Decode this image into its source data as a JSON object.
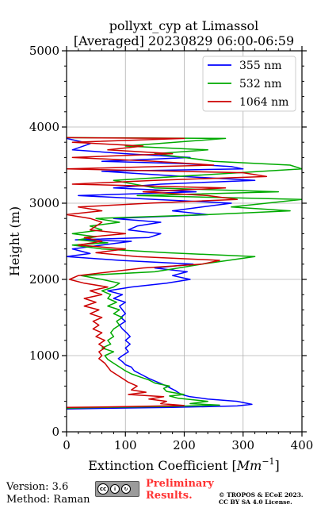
{
  "chart_data": {
    "type": "line",
    "title_line1": "pollyxt_cyp at Limassol",
    "title_line2": "[Averaged] 20230829 06:00-06:59",
    "xlabel_main": "Extinction Coefficient [",
    "xlabel_unit_base": "Mm",
    "xlabel_unit_exp": "−1",
    "xlabel_close": "]",
    "ylabel": "Height (m)",
    "xlim": [
      0,
      400
    ],
    "ylim": [
      0,
      5000
    ],
    "xticks": [
      "0",
      "100",
      "200",
      "300",
      "400"
    ],
    "yticks": [
      "0",
      "1000",
      "2000",
      "3000",
      "4000",
      "5000"
    ],
    "grid": true,
    "legend_position": "top-right",
    "series": [
      {
        "name": "355 nm",
        "color": "#0000ff",
        "points": [
          [
            0,
            300
          ],
          [
            80,
            310
          ],
          [
            180,
            320
          ],
          [
            290,
            340
          ],
          [
            315,
            360
          ],
          [
            290,
            400
          ],
          [
            240,
            430
          ],
          [
            210,
            460
          ],
          [
            195,
            490
          ],
          [
            185,
            540
          ],
          [
            170,
            600
          ],
          [
            155,
            650
          ],
          [
            140,
            700
          ],
          [
            125,
            760
          ],
          [
            115,
            800
          ],
          [
            110,
            850
          ],
          [
            100,
            880
          ],
          [
            95,
            920
          ],
          [
            88,
            960
          ],
          [
            95,
            1000
          ],
          [
            105,
            1050
          ],
          [
            100,
            1100
          ],
          [
            108,
            1150
          ],
          [
            100,
            1200
          ],
          [
            108,
            1250
          ],
          [
            102,
            1300
          ],
          [
            95,
            1350
          ],
          [
            90,
            1400
          ],
          [
            100,
            1450
          ],
          [
            92,
            1500
          ],
          [
            100,
            1550
          ],
          [
            95,
            1600
          ],
          [
            90,
            1650
          ],
          [
            100,
            1700
          ],
          [
            80,
            1750
          ],
          [
            95,
            1800
          ],
          [
            70,
            1850
          ],
          [
            110,
            1900
          ],
          [
            170,
            1950
          ],
          [
            210,
            2000
          ],
          [
            180,
            2050
          ],
          [
            205,
            2100
          ],
          [
            150,
            2150
          ],
          [
            215,
            2200
          ],
          [
            90,
            2250
          ],
          [
            0,
            2300
          ],
          [
            40,
            2340
          ],
          [
            10,
            2400
          ],
          [
            60,
            2450
          ],
          [
            110,
            2500
          ],
          [
            15,
            2520
          ],
          [
            140,
            2550
          ],
          [
            160,
            2600
          ],
          [
            105,
            2650
          ],
          [
            120,
            2700
          ],
          [
            160,
            2750
          ],
          [
            80,
            2800
          ],
          [
            240,
            2850
          ],
          [
            180,
            2900
          ],
          [
            230,
            2950
          ],
          [
            280,
            3000
          ],
          [
            150,
            3050
          ],
          [
            20,
            3100
          ],
          [
            220,
            3150
          ],
          [
            80,
            3200
          ],
          [
            160,
            3250
          ],
          [
            320,
            3300
          ],
          [
            200,
            3350
          ],
          [
            60,
            3420
          ],
          [
            300,
            3450
          ],
          [
            280,
            3480
          ],
          [
            200,
            3520
          ],
          [
            60,
            3550
          ],
          [
            210,
            3600
          ],
          [
            100,
            3650
          ],
          [
            10,
            3700
          ],
          [
            40,
            3780
          ],
          [
            0,
            3850
          ]
        ]
      },
      {
        "name": "532 nm",
        "color": "#00aa00",
        "points": [
          [
            0,
            310
          ],
          [
            60,
            320
          ],
          [
            160,
            330
          ],
          [
            260,
            350
          ],
          [
            210,
            370
          ],
          [
            240,
            400
          ],
          [
            190,
            440
          ],
          [
            175,
            470
          ],
          [
            200,
            490
          ],
          [
            170,
            530
          ],
          [
            165,
            570
          ],
          [
            175,
            600
          ],
          [
            150,
            640
          ],
          [
            140,
            680
          ],
          [
            125,
            720
          ],
          [
            110,
            760
          ],
          [
            100,
            800
          ],
          [
            90,
            850
          ],
          [
            80,
            900
          ],
          [
            70,
            950
          ],
          [
            65,
            1000
          ],
          [
            80,
            1050
          ],
          [
            60,
            1100
          ],
          [
            75,
            1150
          ],
          [
            70,
            1200
          ],
          [
            80,
            1250
          ],
          [
            75,
            1300
          ],
          [
            80,
            1350
          ],
          [
            90,
            1400
          ],
          [
            85,
            1450
          ],
          [
            95,
            1500
          ],
          [
            80,
            1550
          ],
          [
            90,
            1600
          ],
          [
            70,
            1650
          ],
          [
            85,
            1700
          ],
          [
            70,
            1750
          ],
          [
            75,
            1800
          ],
          [
            60,
            1850
          ],
          [
            80,
            1900
          ],
          [
            90,
            1950
          ],
          [
            60,
            2000
          ],
          [
            25,
            2050
          ],
          [
            150,
            2100
          ],
          [
            190,
            2150
          ],
          [
            230,
            2200
          ],
          [
            320,
            2300
          ],
          [
            170,
            2350
          ],
          [
            60,
            2400
          ],
          [
            10,
            2450
          ],
          [
            70,
            2480
          ],
          [
            20,
            2520
          ],
          [
            50,
            2560
          ],
          [
            10,
            2600
          ],
          [
            60,
            2650
          ],
          [
            40,
            2700
          ],
          [
            90,
            2750
          ],
          [
            50,
            2800
          ],
          [
            240,
            2850
          ],
          [
            380,
            2900
          ],
          [
            280,
            2950
          ],
          [
            400,
            3050
          ],
          [
            120,
            3100
          ],
          [
            360,
            3150
          ],
          [
            150,
            3200
          ],
          [
            80,
            3300
          ],
          [
            400,
            3450
          ],
          [
            380,
            3500
          ],
          [
            250,
            3550
          ],
          [
            150,
            3650
          ],
          [
            240,
            3700
          ],
          [
            100,
            3750
          ],
          [
            270,
            3850
          ],
          [
            0,
            3860
          ]
        ]
      },
      {
        "name": "1064 nm",
        "color": "#cc0000",
        "points": [
          [
            0,
            320
          ],
          [
            100,
            330
          ],
          [
            200,
            345
          ],
          [
            160,
            370
          ],
          [
            170,
            400
          ],
          [
            140,
            430
          ],
          [
            165,
            460
          ],
          [
            105,
            490
          ],
          [
            135,
            520
          ],
          [
            110,
            550
          ],
          [
            120,
            600
          ],
          [
            105,
            650
          ],
          [
            95,
            700
          ],
          [
            85,
            750
          ],
          [
            75,
            800
          ],
          [
            70,
            850
          ],
          [
            65,
            900
          ],
          [
            55,
            960
          ],
          [
            60,
            1000
          ],
          [
            55,
            1050
          ],
          [
            65,
            1100
          ],
          [
            55,
            1150
          ],
          [
            65,
            1200
          ],
          [
            50,
            1250
          ],
          [
            60,
            1300
          ],
          [
            45,
            1350
          ],
          [
            55,
            1400
          ],
          [
            45,
            1450
          ],
          [
            60,
            1500
          ],
          [
            40,
            1550
          ],
          [
            55,
            1600
          ],
          [
            30,
            1650
          ],
          [
            50,
            1700
          ],
          [
            30,
            1750
          ],
          [
            60,
            1800
          ],
          [
            40,
            1850
          ],
          [
            70,
            1900
          ],
          [
            30,
            1950
          ],
          [
            5,
            2000
          ],
          [
            20,
            2050
          ],
          [
            130,
            2150
          ],
          [
            230,
            2200
          ],
          [
            260,
            2250
          ],
          [
            120,
            2300
          ],
          [
            50,
            2350
          ],
          [
            100,
            2400
          ],
          [
            20,
            2450
          ],
          [
            60,
            2500
          ],
          [
            30,
            2550
          ],
          [
            100,
            2600
          ],
          [
            40,
            2650
          ],
          [
            60,
            2750
          ],
          [
            40,
            2800
          ],
          [
            0,
            2850
          ],
          [
            60,
            2900
          ],
          [
            20,
            2950
          ],
          [
            140,
            3000
          ],
          [
            290,
            3050
          ],
          [
            240,
            3100
          ],
          [
            130,
            3150
          ],
          [
            270,
            3200
          ],
          [
            10,
            3250
          ],
          [
            150,
            3300
          ],
          [
            340,
            3350
          ],
          [
            300,
            3400
          ],
          [
            0,
            3450
          ],
          [
            250,
            3500
          ],
          [
            150,
            3550
          ],
          [
            10,
            3600
          ],
          [
            180,
            3650
          ],
          [
            70,
            3700
          ],
          [
            130,
            3750
          ],
          [
            10,
            3800
          ],
          [
            200,
            3850
          ],
          [
            0,
            3860
          ]
        ]
      }
    ]
  },
  "footer": {
    "version": "Version: 3.6",
    "method": "Method: Raman",
    "prelim_line1": "Preliminary",
    "prelim_line2": "Results.",
    "copyright_line1": "© TROPOS & ECoE 2023.",
    "copyright_line2": "CC BY SA 4.0 License.",
    "cc_badge_text": "BY SA"
  }
}
